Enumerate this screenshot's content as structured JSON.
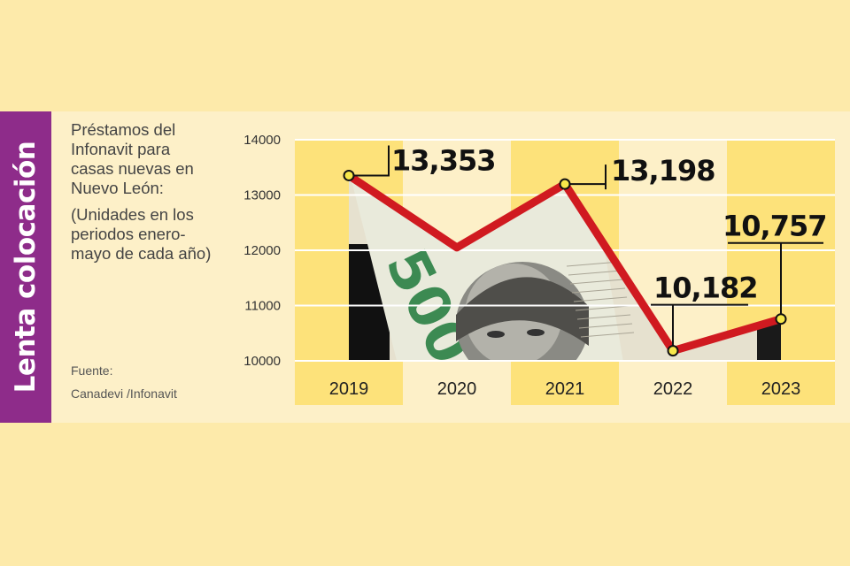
{
  "side_title": "Lenta colocación",
  "description": {
    "title": "Préstamos del Infonavit para casas nuevas en Nuevo León:",
    "subtitle": "(Unidades en los periodos enero-mayo de cada año)"
  },
  "source": {
    "label": "Fuente:",
    "value": "Canadevi /Infonavit"
  },
  "colors": {
    "line": "#d01a20",
    "column": "#fde27a",
    "marker": "#f7e84a",
    "label": "#111111"
  },
  "chart_data": {
    "type": "line",
    "title": "",
    "xlabel": "",
    "ylabel": "",
    "categories": [
      "2019",
      "2020",
      "2021",
      "2022",
      "2023"
    ],
    "series": [
      {
        "values": [
          13353,
          12050,
          13198,
          10182,
          10757
        ]
      }
    ],
    "labeled_points": [
      {
        "category": "2019",
        "label": "13,353"
      },
      {
        "category": "2021",
        "label": "13,198"
      },
      {
        "category": "2022",
        "label": "10,182"
      },
      {
        "category": "2023",
        "label": "10,757"
      }
    ],
    "ylim": [
      10000,
      14000
    ],
    "yticks": [
      "14000",
      "13000",
      "12000",
      "11000",
      "10000"
    ],
    "grid": true,
    "highlighted_columns": [
      "2019",
      "2021",
      "2023"
    ]
  }
}
